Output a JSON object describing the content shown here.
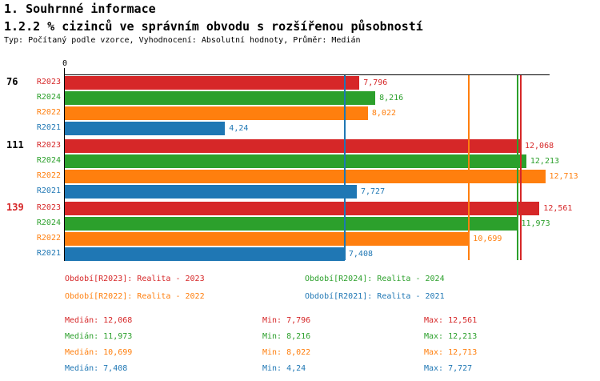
{
  "header": {
    "title": "1. Souhrnné informace",
    "subtitle": "1.2.2 % cizinců ve správním obvodu s rozšířenou působností",
    "meta": "Typ: Počítaný podle vzorce, Vyhodnocení: Absolutní hodnoty, Průměr: Medián"
  },
  "colors": {
    "R2023": "#d62728",
    "R2024": "#2ca02c",
    "R2022": "#ff7f0e",
    "R2021": "#1f77b4",
    "axis": "#000000",
    "highlight_group_label": "#d62728"
  },
  "chart_data": {
    "type": "bar",
    "orientation": "horizontal",
    "title": "1.2.2 % cizinců ve správním obvodu s rozšířenou působností",
    "axis": {
      "origin_label": "0",
      "max": 12.83,
      "unit": "%"
    },
    "series_order": [
      "R2023",
      "R2024",
      "R2022",
      "R2021"
    ],
    "groups": [
      {
        "label": "76",
        "label_color": "#000000",
        "bars": [
          {
            "series": "R2023",
            "value": 7.796,
            "label": "7,796"
          },
          {
            "series": "R2024",
            "value": 8.216,
            "label": "8,216"
          },
          {
            "series": "R2022",
            "value": 8.022,
            "label": "8,022"
          },
          {
            "series": "R2021",
            "value": 4.24,
            "label": "4,24"
          }
        ]
      },
      {
        "label": "111",
        "label_color": "#000000",
        "bars": [
          {
            "series": "R2023",
            "value": 12.068,
            "label": "12,068"
          },
          {
            "series": "R2024",
            "value": 12.213,
            "label": "12,213"
          },
          {
            "series": "R2022",
            "value": 12.713,
            "label": "12,713"
          },
          {
            "series": "R2021",
            "value": 7.727,
            "label": "7,727"
          }
        ]
      },
      {
        "label": "139",
        "label_color": "#d62728",
        "bars": [
          {
            "series": "R2023",
            "value": 12.561,
            "label": "12,561"
          },
          {
            "series": "R2024",
            "value": 11.973,
            "label": "11,973"
          },
          {
            "series": "R2022",
            "value": 10.699,
            "label": "10,699"
          },
          {
            "series": "R2021",
            "value": 7.408,
            "label": "7,408"
          }
        ]
      }
    ],
    "medians": [
      {
        "series": "R2023",
        "value": 12.068
      },
      {
        "series": "R2024",
        "value": 11.973
      },
      {
        "series": "R2022",
        "value": 10.699
      },
      {
        "series": "R2021",
        "value": 7.408
      }
    ]
  },
  "legend": {
    "items": [
      {
        "series": "R2023",
        "label": "Období[R2023]: Realita - 2023"
      },
      {
        "series": "R2024",
        "label": "Období[R2024]: Realita - 2024"
      },
      {
        "series": "R2022",
        "label": "Období[R2022]: Realita - 2022"
      },
      {
        "series": "R2021",
        "label": "Období[R2021]: Realita - 2021"
      }
    ]
  },
  "stats": {
    "rows": [
      {
        "series": "R2023",
        "median": "Medián: 12,068",
        "min": "Min: 7,796",
        "max": "Max: 12,561"
      },
      {
        "series": "R2024",
        "median": "Medián: 11,973",
        "min": "Min: 8,216",
        "max": "Max: 12,213"
      },
      {
        "series": "R2022",
        "median": "Medián: 10,699",
        "min": "Min: 8,022",
        "max": "Max: 12,713"
      },
      {
        "series": "R2021",
        "median": "Medián: 7,408",
        "min": "Min: 4,24",
        "max": "Max: 7,727"
      }
    ]
  }
}
